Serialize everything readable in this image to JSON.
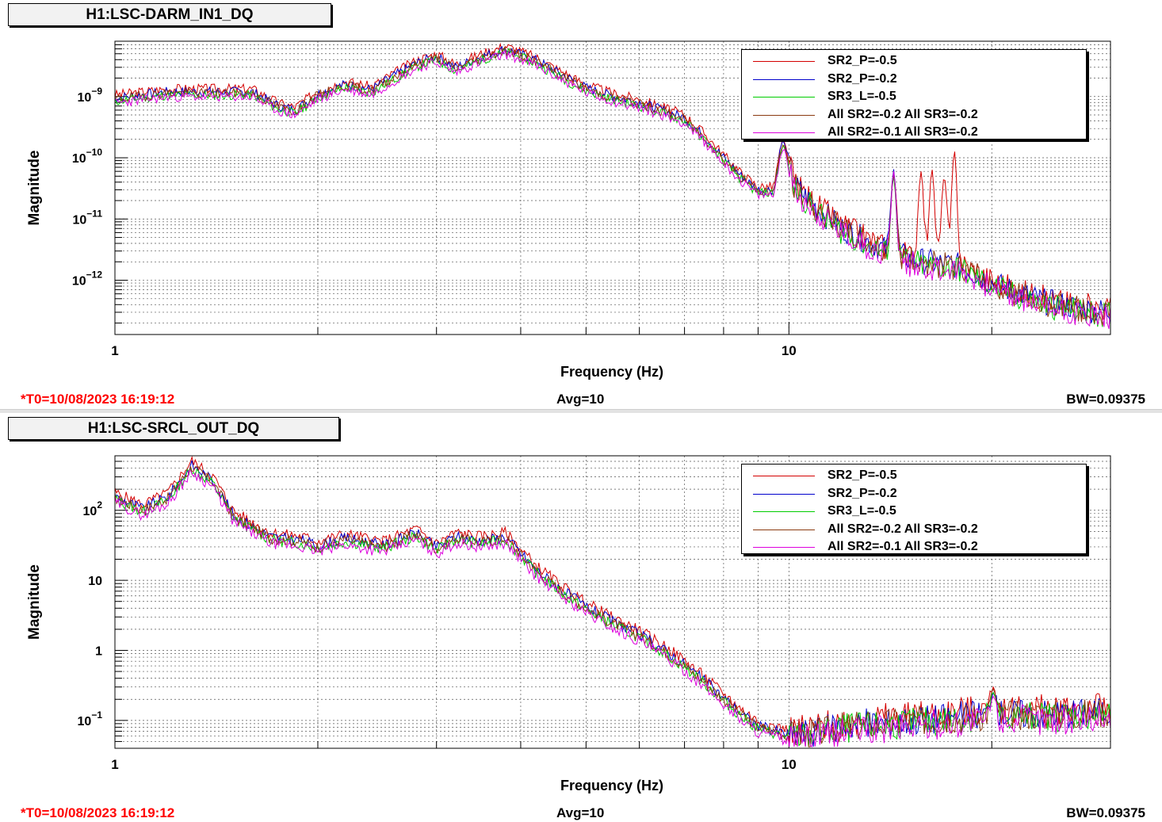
{
  "panels": [
    {
      "title": "H1:LSC-DARM_IN1_DQ",
      "status": {
        "t0": "*T0=10/08/2023 16:19:12",
        "avg": "Avg=10",
        "bw": "BW=0.09375"
      },
      "ylabel": "Magnitude",
      "xlabel": "Frequency (Hz)"
    },
    {
      "title": "H1:LSC-SRCL_OUT_DQ",
      "status": {
        "t0": "*T0=10/08/2023 16:19:12",
        "avg": "Avg=10",
        "bw": "BW=0.09375"
      },
      "ylabel": "Magnitude",
      "xlabel": "Frequency (Hz)"
    }
  ],
  "legend": [
    {
      "name": "SR2_P=-0.5",
      "color": "#d40000"
    },
    {
      "name": "SR2_P=-0.2",
      "color": "#0000cc"
    },
    {
      "name": "SR3_L=-0.5",
      "color": "#00cc00"
    },
    {
      "name": "All SR2=-0.2 All SR3=-0.2",
      "color": "#8b3a10"
    },
    {
      "name": "All SR2=-0.1 All SR3=-0.2",
      "color": "#dd00dd"
    }
  ],
  "chart_data": [
    {
      "type": "line",
      "xscale": "log",
      "yscale": "log",
      "xlim": [
        1,
        30
      ],
      "ylim": [
        1.3e-13,
        8e-09
      ],
      "xticks": [
        {
          "v": 1,
          "label": "1"
        },
        {
          "v": 10,
          "label": "10"
        }
      ],
      "yticks": [
        {
          "v": 1e-09,
          "base": "10",
          "exp": "−9"
        },
        {
          "v": 1e-10,
          "base": "10",
          "exp": "−10"
        },
        {
          "v": 1e-11,
          "base": "10",
          "exp": "−11"
        },
        {
          "v": 1e-12,
          "base": "10",
          "exp": "−12"
        }
      ],
      "grid": true,
      "legend_position": "top-right",
      "baseline": [
        [
          1,
          9.5e-10
        ],
        [
          1.2,
          1.2e-09
        ],
        [
          1.4,
          1.2e-09
        ],
        [
          1.6,
          1.2e-09
        ],
        [
          1.75,
          7e-10
        ],
        [
          1.85,
          6e-10
        ],
        [
          2.0,
          1.1e-09
        ],
        [
          2.2,
          1.6e-09
        ],
        [
          2.4,
          1.3e-09
        ],
        [
          2.6,
          2.2e-09
        ],
        [
          2.8,
          3.5e-09
        ],
        [
          3.0,
          4.5e-09
        ],
        [
          3.2,
          3e-09
        ],
        [
          3.5,
          4.5e-09
        ],
        [
          3.8,
          6e-09
        ],
        [
          4.2,
          4e-09
        ],
        [
          4.6,
          2.3e-09
        ],
        [
          5.0,
          1.4e-09
        ],
        [
          5.5,
          1e-09
        ],
        [
          6.0,
          8e-10
        ],
        [
          6.5,
          6e-10
        ],
        [
          7.0,
          4.5e-10
        ],
        [
          7.5,
          2.2e-10
        ],
        [
          8.0,
          1e-10
        ],
        [
          8.5,
          5e-11
        ],
        [
          9.0,
          3e-11
        ],
        [
          9.5,
          3e-11
        ],
        [
          9.8,
          1.8e-10
        ],
        [
          10.2,
          3.5e-11
        ],
        [
          11,
          1.5e-11
        ],
        [
          12,
          7e-12
        ],
        [
          13,
          4.5e-12
        ],
        [
          14,
          3e-12
        ],
        [
          15,
          2.3e-12
        ],
        [
          16,
          2e-12
        ],
        [
          18,
          1.7e-12
        ],
        [
          20,
          9e-13
        ],
        [
          22,
          6e-13
        ],
        [
          24,
          4.5e-13
        ],
        [
          27,
          3.5e-13
        ],
        [
          30,
          3e-13
        ]
      ],
      "series": [
        {
          "name": "SR2_P=-0.5",
          "offset": 1.12,
          "seed": 3,
          "peaks": [
            [
              9.8,
              1.5e-10
            ],
            [
              14.3,
              6e-11
            ],
            [
              15.7,
              6e-11
            ],
            [
              16.3,
              6.5e-11
            ],
            [
              17.0,
              5e-11
            ],
            [
              17.6,
              1.3e-10
            ],
            [
              20.1,
              8e-13
            ]
          ]
        },
        {
          "name": "SR2_P=-0.2",
          "offset": 1.0,
          "seed": 7,
          "peaks": [
            [
              9.8,
              1.7e-10
            ],
            [
              14.3,
              6.5e-11
            ],
            [
              20.1,
              8e-13
            ]
          ]
        },
        {
          "name": "SR3_L=-0.5",
          "offset": 0.88,
          "seed": 11,
          "peaks": [
            [
              9.8,
              1.3e-10
            ],
            [
              14.3,
              5e-11
            ],
            [
              20.1,
              6e-13
            ]
          ]
        },
        {
          "name": "All SR2=-0.2 All SR3=-0.2",
          "offset": 0.95,
          "seed": 19,
          "peaks": [
            [
              9.8,
              1.4e-10
            ],
            [
              14.3,
              5.5e-11
            ],
            [
              20.1,
              7e-13
            ]
          ]
        },
        {
          "name": "All SR2=-0.1 All SR3=-0.2",
          "offset": 0.82,
          "seed": 23,
          "peaks": [
            [
              9.8,
              1.2e-10
            ],
            [
              14.3,
              6e-11
            ],
            [
              20.1,
              7e-13
            ]
          ]
        }
      ]
    },
    {
      "type": "line",
      "xscale": "log",
      "yscale": "log",
      "xlim": [
        1,
        30
      ],
      "ylim": [
        0.04,
        600
      ],
      "xticks": [
        {
          "v": 1,
          "label": "1"
        },
        {
          "v": 10,
          "label": "10"
        }
      ],
      "yticks": [
        {
          "v": 100,
          "base": "10",
          "exp": "2"
        },
        {
          "v": 10,
          "base": "10",
          "exp": ""
        },
        {
          "v": 1,
          "base": "1",
          "exp": ""
        },
        {
          "v": 0.1,
          "base": "10",
          "exp": "−1"
        }
      ],
      "grid": true,
      "legend_position": "top-right",
      "baseline": [
        [
          1,
          150
        ],
        [
          1.1,
          100
        ],
        [
          1.2,
          150
        ],
        [
          1.3,
          420
        ],
        [
          1.4,
          250
        ],
        [
          1.5,
          80
        ],
        [
          1.7,
          40
        ],
        [
          1.9,
          35
        ],
        [
          2.0,
          30
        ],
        [
          2.2,
          38
        ],
        [
          2.5,
          30
        ],
        [
          2.8,
          45
        ],
        [
          3.0,
          28
        ],
        [
          3.2,
          40
        ],
        [
          3.5,
          35
        ],
        [
          3.8,
          40
        ],
        [
          4.2,
          14
        ],
        [
          4.6,
          7
        ],
        [
          5.0,
          4
        ],
        [
          5.5,
          2.4
        ],
        [
          6.0,
          1.6
        ],
        [
          6.5,
          1.0
        ],
        [
          7.0,
          0.6
        ],
        [
          7.5,
          0.35
        ],
        [
          8.0,
          0.2
        ],
        [
          8.5,
          0.12
        ],
        [
          9.0,
          0.08
        ],
        [
          10,
          0.06
        ],
        [
          11,
          0.065
        ],
        [
          12,
          0.08
        ],
        [
          14,
          0.09
        ],
        [
          16,
          0.1
        ],
        [
          18,
          0.11
        ],
        [
          20,
          0.12
        ],
        [
          22,
          0.12
        ],
        [
          25,
          0.12
        ],
        [
          30,
          0.13
        ]
      ],
      "series": [
        {
          "name": "SR2_P=-0.5",
          "offset": 1.2,
          "seed": 5,
          "peaks": [
            [
              20.1,
              0.3
            ]
          ]
        },
        {
          "name": "SR2_P=-0.2",
          "offset": 1.05,
          "seed": 9,
          "peaks": [
            [
              20.1,
              0.25
            ]
          ]
        },
        {
          "name": "SR3_L=-0.5",
          "offset": 0.95,
          "seed": 13,
          "peaks": [
            [
              20.1,
              0.25
            ]
          ]
        },
        {
          "name": "All SR2=-0.2 All SR3=-0.2",
          "offset": 1.0,
          "seed": 17,
          "peaks": [
            [
              20.1,
              0.28
            ]
          ]
        },
        {
          "name": "All SR2=-0.1 All SR3=-0.2",
          "offset": 0.85,
          "seed": 29,
          "peaks": [
            [
              20.1,
              0.22
            ]
          ]
        }
      ]
    }
  ]
}
